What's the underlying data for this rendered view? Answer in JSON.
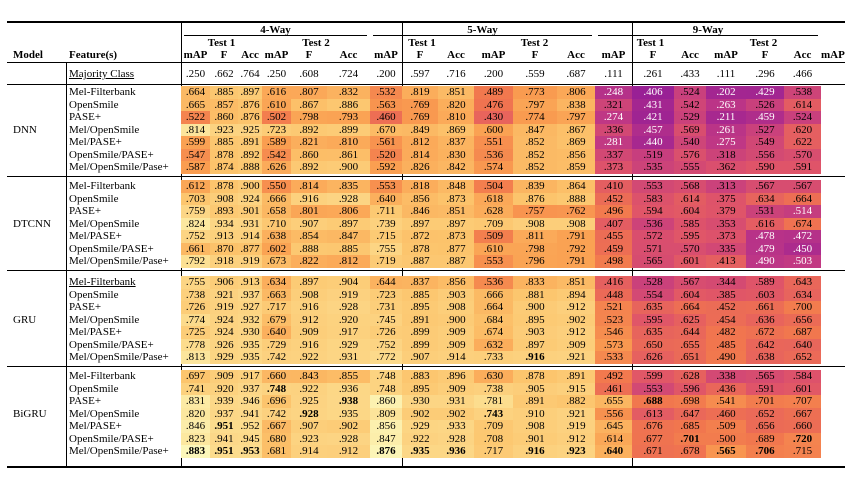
{
  "header": {
    "model_label": "Model",
    "feature_label": "Feature(s)",
    "groups": [
      "4-Way",
      "5-Way",
      "9-Way"
    ],
    "tests": [
      "Test 1",
      "Test 2"
    ],
    "metrics": [
      "mAP",
      "F",
      "Acc"
    ]
  },
  "majority": {
    "label": "Majority Class",
    "values": [
      ".250",
      ".662",
      ".764",
      ".250",
      ".608",
      ".724",
      ".200",
      ".597",
      ".716",
      ".200",
      ".559",
      ".687",
      ".111",
      ".261",
      ".433",
      ".111",
      ".296",
      ".466"
    ]
  },
  "models": [
    {
      "name": "DNN",
      "rows": [
        {
          "feature": "Mel-Filterbank",
          "underline": false,
          "values": [
            ".664",
            ".885",
            ".897",
            ".616",
            ".807",
            ".832",
            ".532",
            ".819",
            ".851",
            ".489",
            ".773",
            ".806",
            ".248",
            ".406",
            ".524",
            ".202",
            ".429",
            ".538"
          ],
          "bold": []
        },
        {
          "feature": "OpenSmile",
          "underline": false,
          "values": [
            ".665",
            ".857",
            ".876",
            ".610",
            ".867",
            ".886",
            ".563",
            ".769",
            ".820",
            ".476",
            ".797",
            ".838",
            ".321",
            ".431",
            ".542",
            ".263",
            ".526",
            ".614"
          ],
          "bold": []
        },
        {
          "feature": "PASE+",
          "underline": false,
          "values": [
            ".522",
            ".860",
            ".876",
            ".502",
            ".798",
            ".793",
            ".460",
            ".769",
            ".810",
            ".430",
            ".774",
            ".797",
            ".274",
            ".421",
            ".529",
            ".211",
            ".459",
            ".524"
          ],
          "bold": []
        },
        {
          "feature": "Mel/OpenSmile",
          "underline": false,
          "values": [
            ".814",
            ".923",
            ".925",
            ".723",
            ".892",
            ".899",
            ".670",
            ".849",
            ".869",
            ".600",
            ".847",
            ".867",
            ".336",
            ".457",
            ".569",
            ".261",
            ".527",
            ".620"
          ],
          "bold": []
        },
        {
          "feature": "Mel/PASE+",
          "underline": false,
          "values": [
            ".599",
            ".885",
            ".891",
            ".589",
            ".821",
            ".810",
            ".561",
            ".812",
            ".837",
            ".551",
            ".852",
            ".869",
            ".281",
            ".440",
            ".540",
            ".275",
            ".549",
            ".622"
          ],
          "bold": []
        },
        {
          "feature": "OpenSmile/PASE+",
          "underline": false,
          "values": [
            ".547",
            ".878",
            ".892",
            ".542",
            ".860",
            ".861",
            ".520",
            ".814",
            ".830",
            ".536",
            ".852",
            ".856",
            ".337",
            ".519",
            ".576",
            ".318",
            ".556",
            ".570"
          ],
          "bold": []
        },
        {
          "feature": "Mel/OpenSmile/Pase+",
          "underline": false,
          "values": [
            ".587",
            ".874",
            ".888",
            ".626",
            ".892",
            ".900",
            ".592",
            ".826",
            ".842",
            ".574",
            ".852",
            ".859",
            ".373",
            ".535",
            ".555",
            ".362",
            ".590",
            ".591"
          ],
          "bold": []
        }
      ]
    },
    {
      "name": "DTCNN",
      "rows": [
        {
          "feature": "Mel-Filterbank",
          "underline": false,
          "values": [
            ".612",
            ".878",
            ".900",
            ".550",
            ".814",
            ".835",
            ".553",
            ".818",
            ".848",
            ".504",
            ".839",
            ".864",
            ".410",
            ".553",
            ".568",
            ".313",
            ".567",
            ".567"
          ],
          "bold": []
        },
        {
          "feature": "OpenSmile",
          "underline": false,
          "values": [
            ".703",
            ".908",
            ".924",
            ".666",
            ".916",
            ".928",
            ".640",
            ".856",
            ".873",
            ".618",
            ".876",
            ".888",
            ".452",
            ".583",
            ".614",
            ".375",
            ".634",
            ".664"
          ],
          "bold": []
        },
        {
          "feature": "PASE+",
          "underline": false,
          "values": [
            ".759",
            ".893",
            ".901",
            ".658",
            ".801",
            ".806",
            ".711",
            ".846",
            ".851",
            ".628",
            ".757",
            ".762",
            ".496",
            ".594",
            ".604",
            ".379",
            ".531",
            ".514"
          ],
          "bold": []
        },
        {
          "feature": "Mel/OpenSmile",
          "underline": false,
          "values": [
            ".824",
            ".934",
            ".931",
            ".710",
            ".907",
            ".897",
            ".739",
            ".897",
            ".897",
            ".709",
            ".908",
            ".908",
            ".407",
            ".536",
            ".585",
            ".353",
            ".616",
            ".674"
          ],
          "bold": []
        },
        {
          "feature": "Mel/PASE+",
          "underline": false,
          "values": [
            ".752",
            ".913",
            ".914",
            ".638",
            ".854",
            ".847",
            ".715",
            ".872",
            ".873",
            ".509",
            ".811",
            ".791",
            ".455",
            ".572",
            ".595",
            ".373",
            ".478",
            ".472"
          ],
          "bold": []
        },
        {
          "feature": "OpenSmile/PASE+",
          "underline": false,
          "values": [
            ".661",
            ".870",
            ".877",
            ".602",
            ".888",
            ".885",
            ".755",
            ".878",
            ".877",
            ".610",
            ".798",
            ".792",
            ".459",
            ".571",
            ".570",
            ".335",
            ".479",
            ".450"
          ],
          "bold": []
        },
        {
          "feature": "Mel/OpenSmile/Pase+",
          "underline": false,
          "values": [
            ".792",
            ".918",
            ".919",
            ".673",
            ".822",
            ".812",
            ".719",
            ".887",
            ".887",
            ".553",
            ".796",
            ".791",
            ".498",
            ".565",
            ".601",
            ".413",
            ".490",
            ".503"
          ],
          "bold": []
        }
      ]
    },
    {
      "name": "GRU",
      "rows": [
        {
          "feature": "Mel-Filterbank",
          "underline": true,
          "values": [
            ".755",
            ".906",
            ".913",
            ".634",
            ".897",
            ".904",
            ".644",
            ".837",
            ".856",
            ".536",
            ".833",
            ".851",
            ".416",
            ".528",
            ".567",
            ".344",
            ".589",
            ".643"
          ],
          "bold": []
        },
        {
          "feature": "OpenSmile",
          "underline": false,
          "values": [
            ".738",
            ".921",
            ".937",
            ".663",
            ".908",
            ".919",
            ".723",
            ".885",
            ".903",
            ".666",
            ".881",
            ".894",
            ".448",
            ".554",
            ".604",
            ".385",
            ".603",
            ".634"
          ],
          "bold": []
        },
        {
          "feature": "PASE+",
          "underline": false,
          "values": [
            ".726",
            ".919",
            ".927",
            ".717",
            ".916",
            ".928",
            ".731",
            ".895",
            ".908",
            ".664",
            ".900",
            ".912",
            ".521",
            ".635",
            ".664",
            ".452",
            ".661",
            ".700"
          ],
          "bold": []
        },
        {
          "feature": "Mel/OpenSmile",
          "underline": false,
          "values": [
            ".774",
            ".924",
            ".932",
            ".679",
            ".912",
            ".920",
            ".745",
            ".891",
            ".900",
            ".684",
            ".895",
            ".902",
            ".523",
            ".595",
            ".625",
            ".454",
            ".636",
            ".656"
          ],
          "bold": []
        },
        {
          "feature": "Mel/PASE+",
          "underline": false,
          "values": [
            ".725",
            ".924",
            ".930",
            ".640",
            ".909",
            ".917",
            ".726",
            ".899",
            ".909",
            ".674",
            ".903",
            ".912",
            ".546",
            ".635",
            ".644",
            ".482",
            ".672",
            ".687"
          ],
          "bold": []
        },
        {
          "feature": "OpenSmile/PASE+",
          "underline": false,
          "values": [
            ".778",
            ".926",
            ".935",
            ".729",
            ".916",
            ".929",
            ".752",
            ".899",
            ".909",
            ".632",
            ".897",
            ".909",
            ".573",
            ".650",
            ".655",
            ".485",
            ".642",
            ".640"
          ],
          "bold": []
        },
        {
          "feature": "Mel/OpenSmile/Pase+",
          "underline": false,
          "values": [
            ".813",
            ".929",
            ".935",
            ".742",
            ".922",
            ".931",
            ".772",
            ".907",
            ".914",
            ".733",
            ".916",
            ".921",
            ".533",
            ".626",
            ".651",
            ".490",
            ".638",
            ".652"
          ],
          "bold": [
            10
          ]
        }
      ]
    },
    {
      "name": "BiGRU",
      "rows": [
        {
          "feature": "Mel-Filterbank",
          "underline": false,
          "values": [
            ".697",
            ".909",
            ".917",
            ".660",
            ".843",
            ".855",
            ".748",
            ".883",
            ".896",
            ".630",
            ".878",
            ".891",
            ".492",
            ".599",
            ".628",
            ".338",
            ".565",
            ".584"
          ],
          "bold": []
        },
        {
          "feature": "OpenSmile",
          "underline": false,
          "values": [
            ".741",
            ".920",
            ".937",
            ".748",
            ".922",
            ".936",
            ".748",
            ".895",
            ".909",
            ".738",
            ".905",
            ".915",
            ".461",
            ".553",
            ".596",
            ".436",
            ".591",
            ".601"
          ],
          "bold": [
            3
          ]
        },
        {
          "feature": "PASE+",
          "underline": false,
          "values": [
            ".831",
            ".939",
            ".946",
            ".696",
            ".925",
            ".938",
            ".860",
            ".930",
            ".931",
            ".781",
            ".891",
            ".882",
            ".655",
            ".688",
            ".698",
            ".541",
            ".701",
            ".707"
          ],
          "bold": [
            5,
            13
          ]
        },
        {
          "feature": "Mel/OpenSmile",
          "underline": false,
          "values": [
            ".820",
            ".937",
            ".941",
            ".742",
            ".928",
            ".935",
            ".809",
            ".902",
            ".902",
            ".743",
            ".910",
            ".921",
            ".556",
            ".613",
            ".647",
            ".460",
            ".652",
            ".667"
          ],
          "bold": [
            4,
            9
          ]
        },
        {
          "feature": "Mel/PASE+",
          "underline": false,
          "values": [
            ".846",
            ".951",
            ".952",
            ".667",
            ".907",
            ".902",
            ".856",
            ".929",
            ".933",
            ".709",
            ".908",
            ".919",
            ".645",
            ".676",
            ".685",
            ".509",
            ".656",
            ".660"
          ],
          "bold": [
            1
          ]
        },
        {
          "feature": "OpenSmile/PASE+",
          "underline": false,
          "values": [
            ".823",
            ".941",
            ".945",
            ".680",
            ".923",
            ".928",
            ".847",
            ".922",
            ".928",
            ".708",
            ".901",
            ".912",
            ".614",
            ".677",
            ".701",
            ".500",
            ".689",
            ".720"
          ],
          "bold": [
            14,
            17
          ]
        },
        {
          "feature": "Mel/OpenSmile/Pase+",
          "underline": false,
          "values": [
            ".883",
            ".951",
            ".953",
            ".681",
            ".914",
            ".912",
            ".876",
            ".935",
            ".936",
            ".717",
            ".916",
            ".923",
            ".640",
            ".671",
            ".678",
            ".565",
            ".706",
            ".715"
          ],
          "bold": [
            0,
            1,
            2,
            6,
            7,
            8,
            10,
            11,
            12,
            15,
            16
          ]
        }
      ]
    }
  ]
}
